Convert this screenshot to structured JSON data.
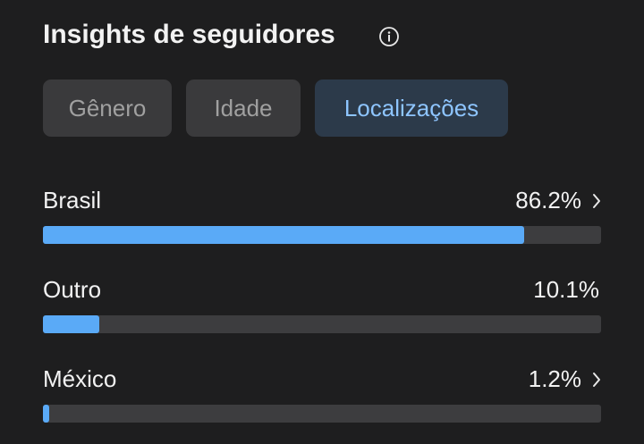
{
  "header": {
    "title": "Insights de seguidores",
    "info_icon": true
  },
  "tabs": {
    "items": [
      "Gênero",
      "Idade",
      "Localizações"
    ],
    "active": 2
  },
  "locations": {
    "xlim": [
      0,
      100
    ],
    "color": "#5aaaf7",
    "track_color": "#3d3d3f",
    "rows": [
      {
        "name": "Brasil",
        "value": 86.2,
        "value_label": "86.2%",
        "chevron": true
      },
      {
        "name": "Outro",
        "value": 10.1,
        "value_label": "10.1%",
        "chevron": false
      },
      {
        "name": "México",
        "value": 1.2,
        "value_label": "1.2%",
        "chevron": true
      }
    ]
  }
}
